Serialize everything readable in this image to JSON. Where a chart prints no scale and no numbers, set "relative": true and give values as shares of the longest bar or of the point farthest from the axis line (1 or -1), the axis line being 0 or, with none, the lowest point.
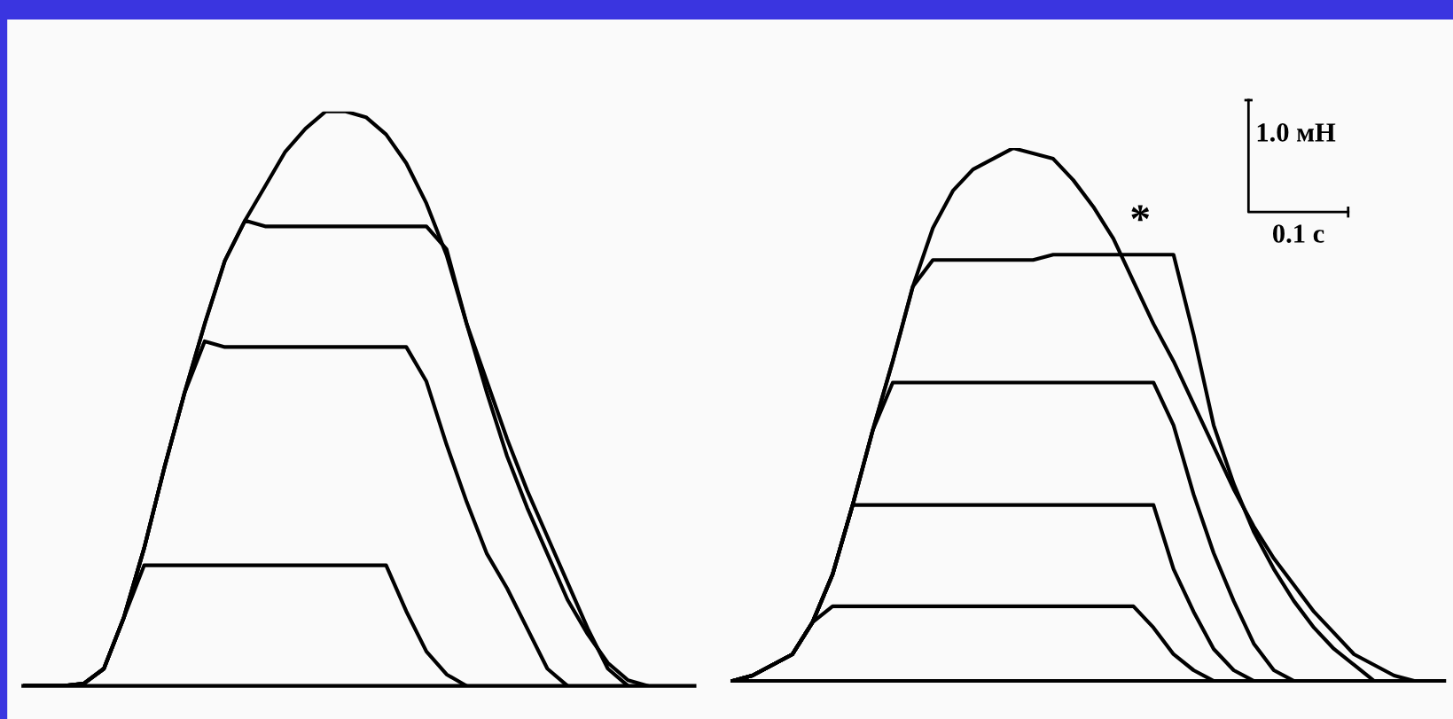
{
  "chart_data": [
    {
      "type": "line",
      "relative": true,
      "categories": [
        null,
        null,
        null,
        null,
        null,
        null,
        null,
        null,
        null,
        null,
        null,
        null,
        null,
        null,
        null,
        null,
        null,
        null,
        null,
        null,
        null,
        null,
        null,
        null,
        null,
        null,
        null,
        null,
        null,
        null,
        null,
        null,
        null,
        null
      ],
      "series": [
        {
          "color": "#000000",
          "values": [
            0,
            0,
            0,
            0.004,
            0.03,
            0.12,
            0.24,
            0.38,
            0.51,
            0.63,
            0.74,
            0.81,
            0.87,
            0.93,
            0.97,
            1.0,
            1.0,
            0.99,
            0.96,
            0.91,
            0.84,
            0.75,
            0.63,
            0.51,
            0.4,
            0.31,
            0.23,
            0.15,
            0.09,
            0.04,
            0.01,
            0,
            null,
            null
          ]
        },
        {
          "color": "#000000",
          "values": [
            0,
            0,
            0,
            0.004,
            0.03,
            0.12,
            0.24,
            0.38,
            0.51,
            0.63,
            0.74,
            0.81,
            0.8,
            0.8,
            0.8,
            0.8,
            0.8,
            0.8,
            0.8,
            0.8,
            0.8,
            0.76,
            0.63,
            0.53,
            0.43,
            0.34,
            0.26,
            0.18,
            0.1,
            0.03,
            0,
            null,
            null,
            null
          ]
        },
        {
          "color": "#000000",
          "values": [
            0,
            0,
            0,
            0.004,
            0.03,
            0.12,
            0.24,
            0.38,
            0.51,
            0.6,
            0.59,
            0.59,
            0.59,
            0.59,
            0.59,
            0.59,
            0.59,
            0.59,
            0.59,
            0.59,
            0.53,
            0.42,
            0.32,
            0.23,
            0.17,
            0.1,
            0.03,
            0,
            null,
            null,
            null,
            null,
            null,
            null
          ]
        },
        {
          "color": "#000000",
          "values": [
            0,
            0,
            0,
            0.004,
            0.03,
            0.12,
            0.21,
            0.21,
            0.21,
            0.21,
            0.21,
            0.21,
            0.21,
            0.21,
            0.21,
            0.21,
            0.21,
            0.21,
            0.21,
            0.13,
            0.06,
            0.02,
            0,
            null,
            null,
            null,
            null,
            null,
            null,
            null,
            null,
            null,
            null,
            null
          ]
        }
      ]
    },
    {
      "type": "line",
      "relative": true,
      "categories": [
        null,
        null,
        null,
        null,
        null,
        null,
        null,
        null,
        null,
        null,
        null,
        null,
        null,
        null,
        null,
        null,
        null,
        null,
        null,
        null,
        null,
        null,
        null,
        null,
        null,
        null,
        null,
        null,
        null,
        null,
        null,
        null,
        null,
        null,
        null,
        null
      ],
      "annotations": [
        "1.0 мН",
        "0.1 с",
        "*"
      ],
      "series": [
        {
          "color": "#000000",
          "values": [
            0,
            0.01,
            0.03,
            0.05,
            0.11,
            0.2,
            0.33,
            0.47,
            0.6,
            0.74,
            0.85,
            0.92,
            0.96,
            0.98,
            1.0,
            0.99,
            0.98,
            0.94,
            0.89,
            0.83,
            0.75,
            0.67,
            0.6,
            0.52,
            0.44,
            0.36,
            0.29,
            0.23,
            0.18,
            0.13,
            0.09,
            0.05,
            0.03,
            0.01,
            0,
            null
          ]
        },
        {
          "color": "#000000",
          "values": [
            0,
            0.01,
            0.03,
            0.05,
            0.11,
            0.2,
            0.33,
            0.47,
            0.6,
            0.74,
            0.79,
            0.79,
            0.79,
            0.79,
            0.79,
            0.79,
            0.8,
            0.8,
            0.8,
            0.8,
            0.8,
            0.8,
            0.8,
            0.65,
            0.48,
            0.37,
            0.28,
            0.21,
            0.15,
            0.1,
            0.06,
            0.03,
            0,
            null,
            null,
            null
          ]
        },
        {
          "color": "#000000",
          "values": [
            0,
            0.01,
            0.03,
            0.05,
            0.11,
            0.2,
            0.33,
            0.47,
            0.56,
            0.56,
            0.56,
            0.56,
            0.56,
            0.56,
            0.56,
            0.56,
            0.56,
            0.56,
            0.56,
            0.56,
            0.56,
            0.56,
            0.48,
            0.35,
            0.24,
            0.15,
            0.07,
            0.02,
            0,
            null,
            null,
            null,
            null,
            null,
            null,
            null
          ]
        },
        {
          "color": "#000000",
          "values": [
            0,
            0.01,
            0.03,
            0.05,
            0.11,
            0.2,
            0.33,
            0.33,
            0.33,
            0.33,
            0.33,
            0.33,
            0.33,
            0.33,
            0.33,
            0.33,
            0.33,
            0.33,
            0.33,
            0.33,
            0.33,
            0.33,
            0.21,
            0.13,
            0.06,
            0.02,
            0,
            null,
            null,
            null,
            null,
            null,
            null,
            null,
            null,
            null
          ]
        },
        {
          "color": "#000000",
          "values": [
            0,
            0.01,
            0.03,
            0.05,
            0.11,
            0.14,
            0.14,
            0.14,
            0.14,
            0.14,
            0.14,
            0.14,
            0.14,
            0.14,
            0.14,
            0.14,
            0.14,
            0.14,
            0.14,
            0.14,
            0.14,
            0.1,
            0.05,
            0.02,
            0,
            null,
            null,
            null,
            null,
            null,
            null,
            null,
            null,
            null,
            null,
            null
          ]
        }
      ]
    }
  ]
}
